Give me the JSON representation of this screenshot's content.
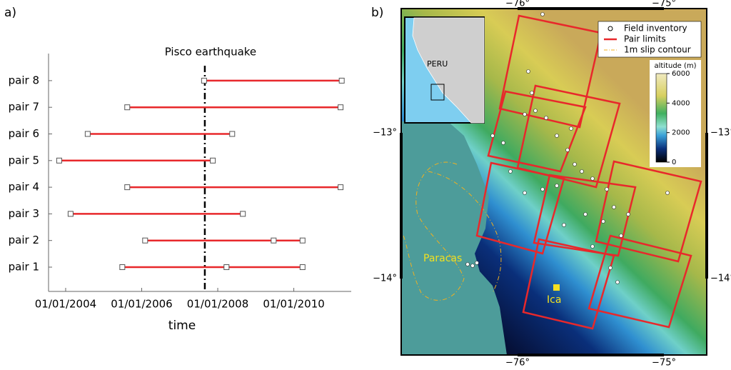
{
  "chart_data": {
    "type": "timeline",
    "panel": "a)",
    "xlabel": "time",
    "event": {
      "label": "Pisco earthquake",
      "date": 2007.66
    },
    "color": "#e8282b",
    "pairs": [
      {
        "name": "pair 1",
        "dates": [
          2005.49,
          2008.23,
          2010.23
        ]
      },
      {
        "name": "pair 2",
        "dates": [
          2006.09,
          2009.47,
          2010.23
        ]
      },
      {
        "name": "pair 3",
        "dates": [
          2004.13,
          2008.66
        ]
      },
      {
        "name": "pair 4",
        "dates": [
          2005.62,
          2011.23
        ]
      },
      {
        "name": "pair 5",
        "dates": [
          2003.83,
          2007.87
        ]
      },
      {
        "name": "pair 6",
        "dates": [
          2004.58,
          2008.38
        ]
      },
      {
        "name": "pair 7",
        "dates": [
          2005.62,
          2011.23
        ]
      },
      {
        "name": "pair 8",
        "dates": [
          2007.64,
          2011.26
        ]
      }
    ],
    "xlim": [
      2003.55,
      2011.51
    ],
    "xticks": [
      {
        "value": 2004,
        "label": "01/01/2004"
      },
      {
        "value": 2006,
        "label": "01/01/2006"
      },
      {
        "value": 2008,
        "label": "01/01/2008"
      },
      {
        "value": 2010,
        "label": "01/01/2010"
      }
    ]
  },
  "map": {
    "panel": "b)",
    "lon_labels": [
      "−76°",
      "−75°"
    ],
    "lat_labels": [
      "−13°",
      "−14°"
    ],
    "legend": [
      "Field inventory",
      "Pair limits",
      "1m slip contour"
    ],
    "colorbar": {
      "title": "altitude (m)",
      "ticks": [
        6000,
        4000,
        2000,
        0
      ]
    },
    "places": {
      "country": "PERU",
      "peninsula": "Paracas",
      "city": "Ica"
    }
  }
}
